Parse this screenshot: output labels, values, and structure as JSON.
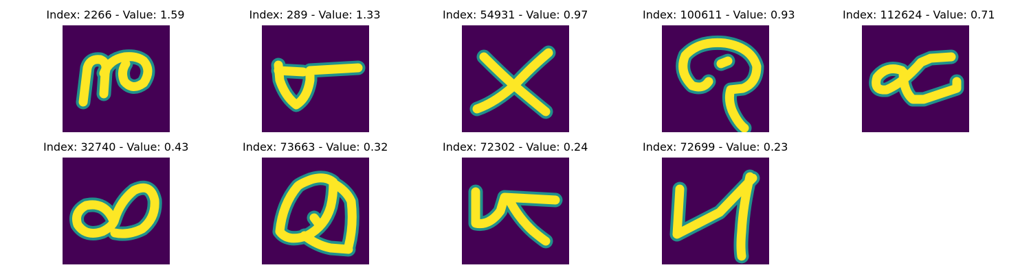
{
  "panels": [
    {
      "title": "Index: 2266 - Value: 1.59",
      "index": 2266,
      "value": 1.59,
      "glyph": "pc-ligature-shape"
    },
    {
      "title": "Index: 289 - Value: 1.33",
      "index": 289,
      "value": 1.33,
      "glyph": "triangle-with-bar-shape"
    },
    {
      "title": "Index: 54931 - Value: 0.97",
      "index": 54931,
      "value": 0.97,
      "glyph": "x-shape"
    },
    {
      "title": "Index: 100611 - Value: 0.93",
      "index": 100611,
      "value": 0.93,
      "glyph": "q-shape"
    },
    {
      "title": "Index: 112624 - Value: 0.71",
      "index": 112624,
      "value": 0.71,
      "glyph": "alpha-c-shape"
    },
    {
      "title": "Index: 32740 - Value: 0.43",
      "index": 32740,
      "value": 0.43,
      "glyph": "double-loop-shape"
    },
    {
      "title": "Index: 73663 - Value: 0.32",
      "index": 73663,
      "value": 0.32,
      "glyph": "a-loop-shape"
    },
    {
      "title": "Index: 72302 - Value: 0.24",
      "index": 72302,
      "value": 0.24,
      "glyph": "alpha-k-shape"
    },
    {
      "title": "Index: 72699 - Value: 0.23",
      "index": 72699,
      "value": 0.23,
      "glyph": "n-four-shape"
    }
  ],
  "colors": {
    "image_background": "#440154",
    "stroke_core": "#fde725",
    "stroke_edge": "#21918c",
    "page_background": "#ffffff"
  }
}
